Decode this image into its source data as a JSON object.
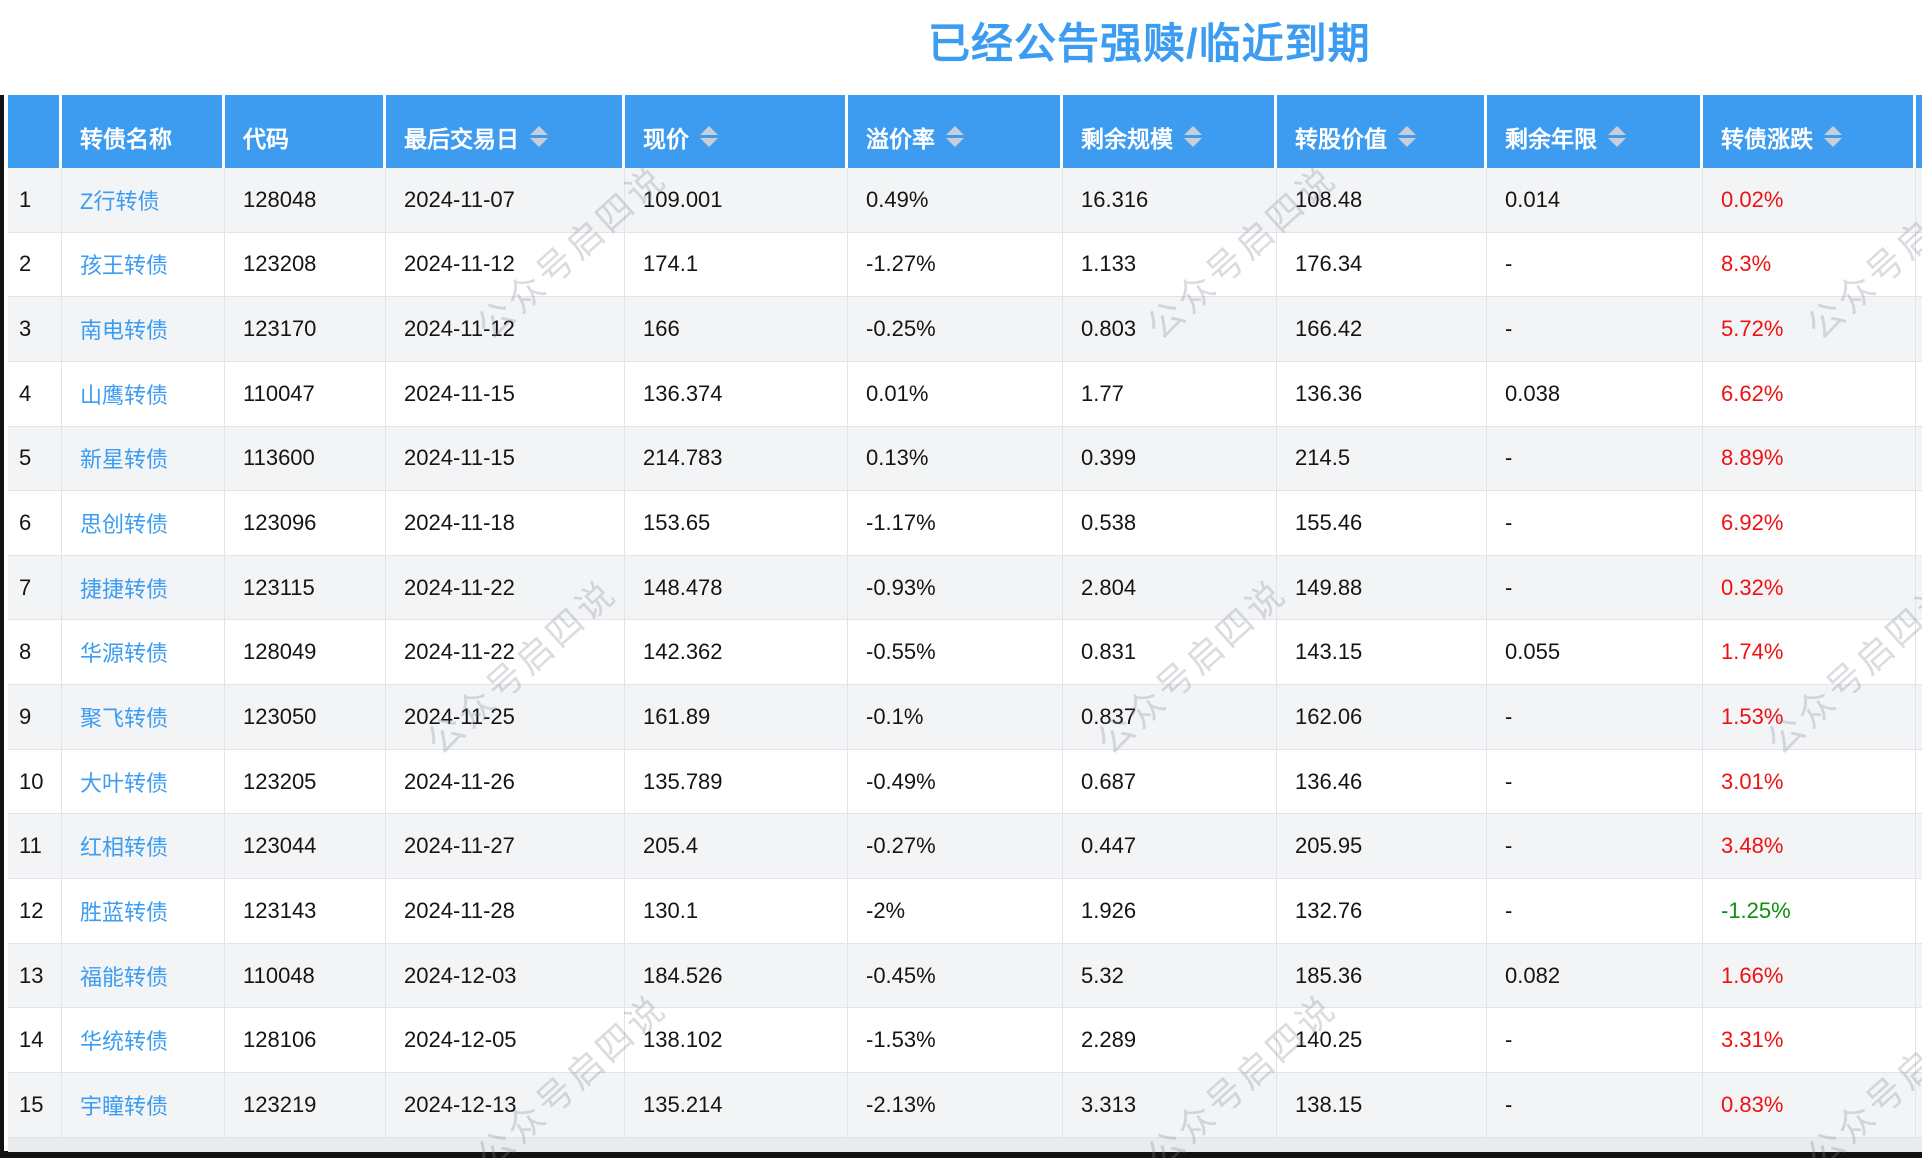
{
  "title": "已经公告强赎/临近到期",
  "watermark_text": "公众号启四说",
  "colors": {
    "header_bg": "#3d9bf0",
    "title_blue": "#3c9cf2",
    "link_blue": "#3b9cf2",
    "change_up_red": "#ef1111",
    "change_down_green": "#0e8f0e",
    "row_alt_bg": "#f3f4f6",
    "sort_arrow": "#c9ced8"
  },
  "table": {
    "columns": [
      {
        "key": "index",
        "label": "",
        "sortable": false
      },
      {
        "key": "name",
        "label": "转债名称",
        "sortable": false
      },
      {
        "key": "code",
        "label": "代码",
        "sortable": false
      },
      {
        "key": "last_trade_date",
        "label": "最后交易日",
        "sortable": true
      },
      {
        "key": "price",
        "label": "现价",
        "sortable": true
      },
      {
        "key": "premium_rate",
        "label": "溢价率",
        "sortable": true
      },
      {
        "key": "remaining_size",
        "label": "剩余规模",
        "sortable": true
      },
      {
        "key": "conversion_value",
        "label": "转股价值",
        "sortable": true
      },
      {
        "key": "remaining_years",
        "label": "剩余年限",
        "sortable": true
      },
      {
        "key": "change",
        "label": "转债涨跌",
        "sortable": true
      }
    ],
    "rows": [
      {
        "index": "1",
        "name": "Z行转债",
        "code": "128048",
        "last_trade_date": "2024-11-07",
        "price": "109.001",
        "premium_rate": "0.49%",
        "remaining_size": "16.316",
        "conversion_value": "108.48",
        "remaining_years": "0.014",
        "change": "0.02%",
        "change_direction": "up"
      },
      {
        "index": "2",
        "name": "孩王转债",
        "code": "123208",
        "last_trade_date": "2024-11-12",
        "price": "174.1",
        "premium_rate": "-1.27%",
        "remaining_size": "1.133",
        "conversion_value": "176.34",
        "remaining_years": "-",
        "change": "8.3%",
        "change_direction": "up"
      },
      {
        "index": "3",
        "name": "南电转债",
        "code": "123170",
        "last_trade_date": "2024-11-12",
        "price": "166",
        "premium_rate": "-0.25%",
        "remaining_size": "0.803",
        "conversion_value": "166.42",
        "remaining_years": "-",
        "change": "5.72%",
        "change_direction": "up"
      },
      {
        "index": "4",
        "name": "山鹰转债",
        "code": "110047",
        "last_trade_date": "2024-11-15",
        "price": "136.374",
        "premium_rate": "0.01%",
        "remaining_size": "1.77",
        "conversion_value": "136.36",
        "remaining_years": "0.038",
        "change": "6.62%",
        "change_direction": "up"
      },
      {
        "index": "5",
        "name": "新星转债",
        "code": "113600",
        "last_trade_date": "2024-11-15",
        "price": "214.783",
        "premium_rate": "0.13%",
        "remaining_size": "0.399",
        "conversion_value": "214.5",
        "remaining_years": "-",
        "change": "8.89%",
        "change_direction": "up"
      },
      {
        "index": "6",
        "name": "思创转债",
        "code": "123096",
        "last_trade_date": "2024-11-18",
        "price": "153.65",
        "premium_rate": "-1.17%",
        "remaining_size": "0.538",
        "conversion_value": "155.46",
        "remaining_years": "-",
        "change": "6.92%",
        "change_direction": "up"
      },
      {
        "index": "7",
        "name": "捷捷转债",
        "code": "123115",
        "last_trade_date": "2024-11-22",
        "price": "148.478",
        "premium_rate": "-0.93%",
        "remaining_size": "2.804",
        "conversion_value": "149.88",
        "remaining_years": "-",
        "change": "0.32%",
        "change_direction": "up"
      },
      {
        "index": "8",
        "name": "华源转债",
        "code": "128049",
        "last_trade_date": "2024-11-22",
        "price": "142.362",
        "premium_rate": "-0.55%",
        "remaining_size": "0.831",
        "conversion_value": "143.15",
        "remaining_years": "0.055",
        "change": "1.74%",
        "change_direction": "up"
      },
      {
        "index": "9",
        "name": "聚飞转债",
        "code": "123050",
        "last_trade_date": "2024-11-25",
        "price": "161.89",
        "premium_rate": "-0.1%",
        "remaining_size": "0.837",
        "conversion_value": "162.06",
        "remaining_years": "-",
        "change": "1.53%",
        "change_direction": "up"
      },
      {
        "index": "10",
        "name": "大叶转债",
        "code": "123205",
        "last_trade_date": "2024-11-26",
        "price": "135.789",
        "premium_rate": "-0.49%",
        "remaining_size": "0.687",
        "conversion_value": "136.46",
        "remaining_years": "-",
        "change": "3.01%",
        "change_direction": "up"
      },
      {
        "index": "11",
        "name": "红相转债",
        "code": "123044",
        "last_trade_date": "2024-11-27",
        "price": "205.4",
        "premium_rate": "-0.27%",
        "remaining_size": "0.447",
        "conversion_value": "205.95",
        "remaining_years": "-",
        "change": "3.48%",
        "change_direction": "up"
      },
      {
        "index": "12",
        "name": "胜蓝转债",
        "code": "123143",
        "last_trade_date": "2024-11-28",
        "price": "130.1",
        "premium_rate": "-2%",
        "remaining_size": "1.926",
        "conversion_value": "132.76",
        "remaining_years": "-",
        "change": "-1.25%",
        "change_direction": "down"
      },
      {
        "index": "13",
        "name": "福能转债",
        "code": "110048",
        "last_trade_date": "2024-12-03",
        "price": "184.526",
        "premium_rate": "-0.45%",
        "remaining_size": "5.32",
        "conversion_value": "185.36",
        "remaining_years": "0.082",
        "change": "1.66%",
        "change_direction": "up"
      },
      {
        "index": "14",
        "name": "华统转债",
        "code": "128106",
        "last_trade_date": "2024-12-05",
        "price": "138.102",
        "premium_rate": "-1.53%",
        "remaining_size": "2.289",
        "conversion_value": "140.25",
        "remaining_years": "-",
        "change": "3.31%",
        "change_direction": "up"
      },
      {
        "index": "15",
        "name": "宇瞳转债",
        "code": "123219",
        "last_trade_date": "2024-12-13",
        "price": "135.214",
        "premium_rate": "-2.13%",
        "remaining_size": "3.313",
        "conversion_value": "138.15",
        "remaining_years": "-",
        "change": "0.83%",
        "change_direction": "up"
      }
    ]
  }
}
